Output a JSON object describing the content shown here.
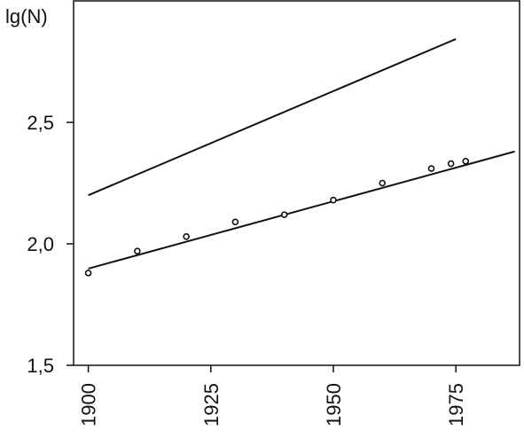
{
  "chart_data": {
    "type": "line",
    "y_label": "lg(N)",
    "xlim": [
      1897,
      1988
    ],
    "ylim": [
      1.5,
      3.0
    ],
    "xticks": [
      1900,
      1925,
      1950,
      1975
    ],
    "yticks": [
      {
        "value": 1.5,
        "label": "1,5"
      },
      {
        "value": 2.0,
        "label": "2,0"
      },
      {
        "value": 2.5,
        "label": "2,5"
      }
    ],
    "series": [
      {
        "color": "#111111",
        "x": [
          1900,
          1975
        ],
        "values": [
          2.2,
          2.843
        ]
      },
      {
        "color": "#111111",
        "x": [
          1900,
          1987
        ],
        "values": [
          1.898,
          2.38
        ]
      }
    ],
    "points": {
      "color": "#111111",
      "x": [
        1900,
        1910,
        1920,
        1930,
        1940,
        1950,
        1960,
        1970,
        1974,
        1977
      ],
      "values": [
        1.88,
        1.97,
        2.03,
        2.09,
        2.12,
        2.18,
        2.25,
        2.31,
        2.33,
        2.34
      ]
    }
  }
}
